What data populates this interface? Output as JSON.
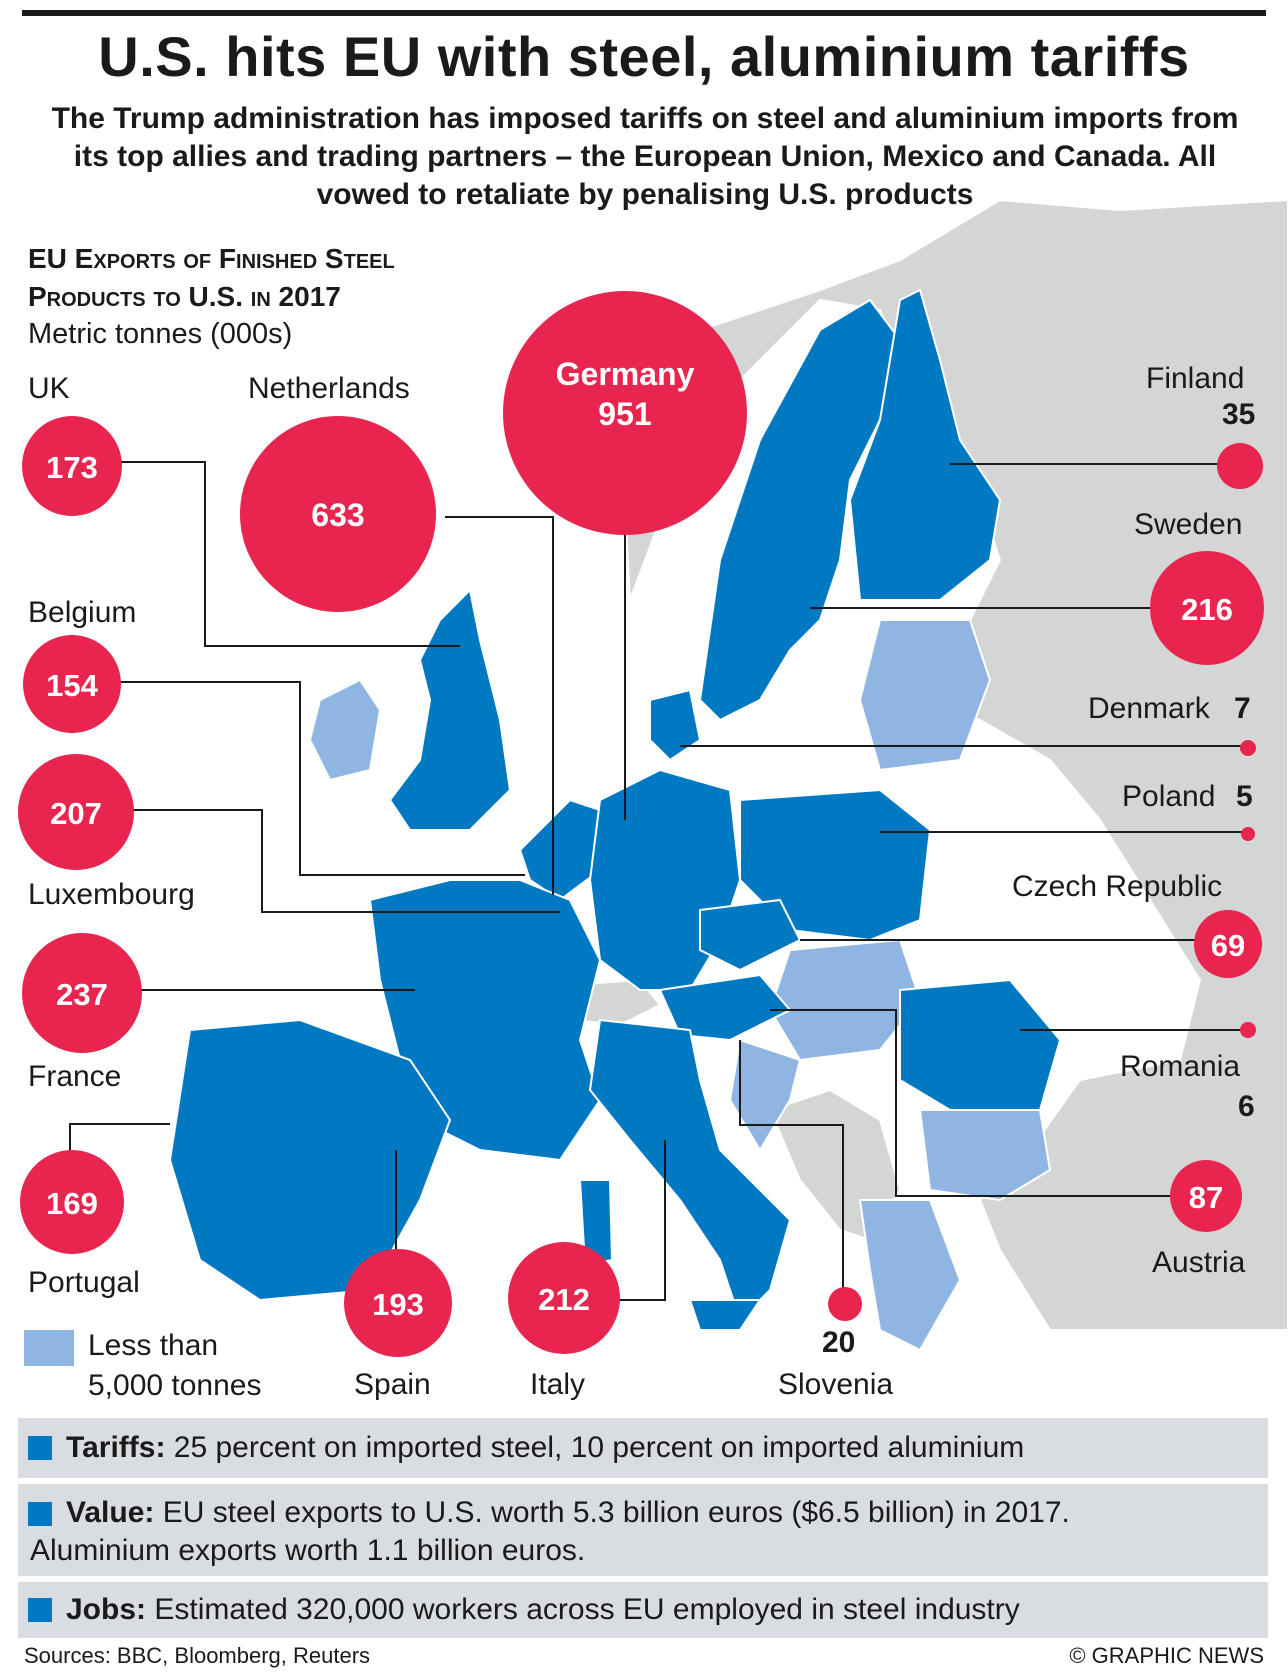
{
  "title": "U.S. hits EU with steel, aluminium tariffs",
  "subtitle": "The Trump administration has imposed tariffs on steel and aluminium imports from its top allies and trading partners – the European Union, Mexico and Canada. All vowed to retaliate by penalising U.S. products",
  "chart_title_line1": "EU Exports of Finished Steel",
  "chart_title_line2": "Products to U.S. in 2017",
  "unit": "Metric tonnes (000s)",
  "colors": {
    "bubble": "#e8254f",
    "eu_country": "#0079c2",
    "eu_small": "#8fb6e3",
    "non_eu": "#d4d5d5",
    "panel": "#d9dce0"
  },
  "chart_data": {
    "type": "bubble-map",
    "title": "EU Exports of Finished Steel Products to U.S. in 2017",
    "unit": "Metric tonnes (000s)",
    "points": [
      {
        "country": "Germany",
        "value": 951
      },
      {
        "country": "Netherlands",
        "value": 633
      },
      {
        "country": "France",
        "value": 237
      },
      {
        "country": "Sweden",
        "value": 216
      },
      {
        "country": "Italy",
        "value": 212
      },
      {
        "country": "Luxembourg",
        "value": 207
      },
      {
        "country": "Spain",
        "value": 193
      },
      {
        "country": "UK",
        "value": 173
      },
      {
        "country": "Portugal",
        "value": 169
      },
      {
        "country": "Belgium",
        "value": 154
      },
      {
        "country": "Austria",
        "value": 87
      },
      {
        "country": "Czech Republic",
        "value": 69
      },
      {
        "country": "Finland",
        "value": 35
      },
      {
        "country": "Slovenia",
        "value": 20
      },
      {
        "country": "Denmark",
        "value": 7
      },
      {
        "country": "Romania",
        "value": 6
      },
      {
        "country": "Poland",
        "value": 5
      }
    ]
  },
  "labels": {
    "uk": "UK",
    "netherlands": "Netherlands",
    "belgium": "Belgium",
    "luxembourg": "Luxembourg",
    "france": "France",
    "portugal": "Portugal",
    "spain": "Spain",
    "italy": "Italy",
    "slovenia": "Slovenia",
    "austria": "Austria",
    "romania": "Romania",
    "czech": "Czech Republic",
    "poland": "Poland",
    "denmark": "Denmark",
    "sweden": "Sweden",
    "finland": "Finland",
    "germany": "Germany"
  },
  "values": {
    "uk": "173",
    "netherlands": "633",
    "belgium": "154",
    "luxembourg": "207",
    "france": "237",
    "portugal": "169",
    "spain": "193",
    "italy": "212",
    "slovenia": "20",
    "austria": "87",
    "romania": "6",
    "czech": "69",
    "poland": "5",
    "denmark": "7",
    "sweden": "216",
    "finland": "35",
    "germany": "951"
  },
  "legend": {
    "line1": "Less than",
    "line2": "5,000 tonnes"
  },
  "facts": [
    {
      "label": "Tariffs:",
      "text": "25 percent on imported steel, 10 percent on imported aluminium"
    },
    {
      "label": "Value:",
      "text": "EU steel exports to U.S. worth 5.3 billion euros ($6.5 billion) in 2017.",
      "text2": "Aluminium exports worth 1.1 billion euros."
    },
    {
      "label": "Jobs:",
      "text": "Estimated 320,000 workers across EU employed in steel industry"
    }
  ],
  "sources": "Sources: BBC, Bloomberg, Reuters",
  "credit": "© GRAPHIC NEWS"
}
